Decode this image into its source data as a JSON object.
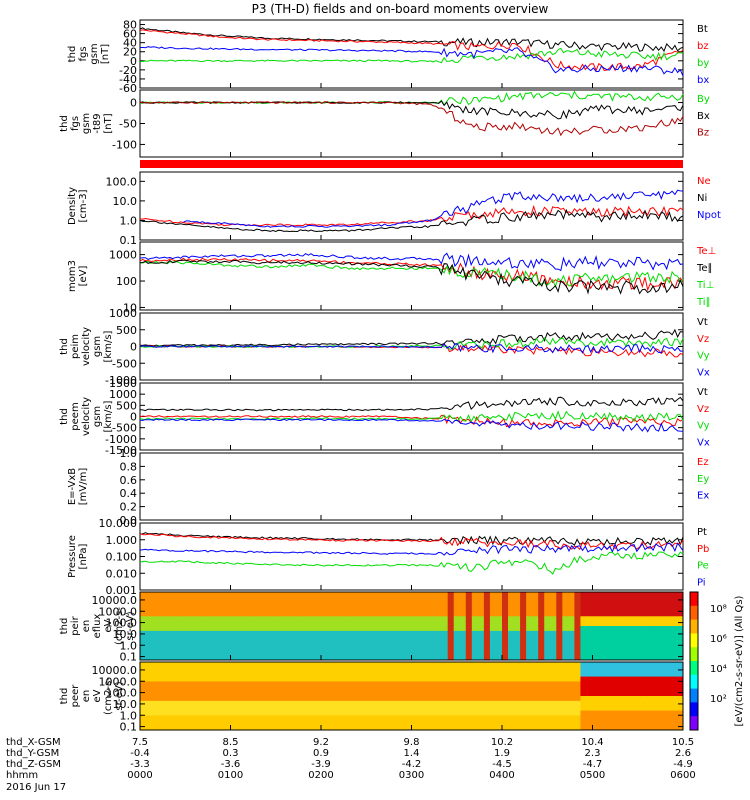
{
  "title": "P3 (TH-D) fields and on-board moments overview",
  "colors": {
    "black": "#000000",
    "red": "#ff0000",
    "green": "#00dd00",
    "blue": "#0000ff",
    "darkred": "#b00000"
  },
  "chart_data": [
    {
      "type": "line",
      "ylabel": [
        "thd",
        "fgs",
        "gsm",
        "[nT]"
      ],
      "ylim": [
        -60,
        90
      ],
      "yticks": [
        "80",
        "60",
        "40",
        "20",
        "0",
        "-20",
        "-40",
        "-60"
      ],
      "ytick_values": [
        80,
        60,
        40,
        20,
        0,
        -20,
        -40,
        -60
      ],
      "legend": [
        {
          "name": "Bt",
          "color": "#000000"
        },
        {
          "name": "bz",
          "color": "#ff0000"
        },
        {
          "name": "by",
          "color": "#00dd00"
        },
        {
          "name": "bx",
          "color": "#0000ff"
        }
      ],
      "series": [
        {
          "name": "Bt",
          "color": "#000000",
          "values": [
            72,
            62,
            55,
            50,
            48,
            46,
            44,
            42,
            40,
            42,
            35,
            32,
            30,
            28
          ]
        },
        {
          "name": "bz",
          "color": "#ff0000",
          "values": [
            68,
            60,
            52,
            47,
            45,
            43,
            41,
            38,
            30,
            38,
            -10,
            -15,
            -12,
            22
          ]
        },
        {
          "name": "by",
          "color": "#00dd00",
          "values": [
            0,
            0,
            0,
            0,
            0,
            0,
            0,
            -2,
            8,
            10,
            20,
            15,
            10,
            12
          ]
        },
        {
          "name": "bx",
          "color": "#0000ff",
          "values": [
            30,
            28,
            26,
            25,
            24,
            23,
            22,
            20,
            15,
            22,
            -20,
            -18,
            -15,
            -25
          ]
        }
      ]
    },
    {
      "type": "line",
      "ylabel": [
        "thd",
        "fgs",
        "gsm",
        "-t89",
        "[nT]"
      ],
      "ylim": [
        -130,
        30
      ],
      "yticks": [
        "0",
        "-50",
        "-100"
      ],
      "ytick_values": [
        0,
        -50,
        -100
      ],
      "legend": [
        {
          "name": "By",
          "color": "#00dd00"
        },
        {
          "name": "Bx",
          "color": "#000000"
        },
        {
          "name": "Bz",
          "color": "#b00000"
        }
      ],
      "series": [
        {
          "name": "By",
          "color": "#00dd00",
          "values": [
            0,
            0,
            0,
            0,
            0,
            0,
            0,
            0,
            5,
            15,
            18,
            15,
            12,
            15
          ]
        },
        {
          "name": "Bx",
          "color": "#000000",
          "values": [
            0,
            0,
            0,
            0,
            0,
            0,
            0,
            0,
            -20,
            -25,
            -30,
            -15,
            -20,
            -10
          ]
        },
        {
          "name": "Bz",
          "color": "#b00000",
          "values": [
            0,
            0,
            0,
            0,
            0,
            0,
            0,
            -5,
            -60,
            -55,
            -70,
            -65,
            -60,
            -40
          ]
        }
      ]
    },
    {
      "type": "line",
      "log": true,
      "ylabel": [
        "Density",
        "[cm-3]"
      ],
      "ylim": [
        0.1,
        300
      ],
      "yticks": [
        "100.0",
        "10.0",
        "1.0",
        "0.1"
      ],
      "ytick_values": [
        100,
        10,
        1,
        0.1
      ],
      "legend": [
        {
          "name": "Ne",
          "color": "#ff0000"
        },
        {
          "name": "Ni",
          "color": "#000000"
        },
        {
          "name": "Npot",
          "color": "#0000ff"
        }
      ],
      "series": [
        {
          "name": "Ne",
          "color": "#ff0000",
          "values": [
            1.2,
            0.8,
            0.6,
            0.6,
            0.6,
            0.6,
            0.8,
            1,
            2,
            3,
            3,
            2.5,
            3,
            3
          ]
        },
        {
          "name": "Ni",
          "color": "#000000",
          "values": [
            1,
            0.6,
            0.4,
            0.3,
            0.3,
            0.3,
            0.4,
            0.5,
            1,
            1.5,
            2,
            1.5,
            1.8,
            1.5
          ]
        },
        {
          "name": "Npot",
          "color": "#0000ff",
          "values": [
            null,
            0.9,
            0.7,
            0.5,
            0.5,
            0.5,
            0.6,
            1,
            5,
            20,
            15,
            15,
            20,
            25
          ]
        }
      ]
    },
    {
      "type": "line",
      "log": true,
      "ylabel": [
        "mom3",
        "[eV]"
      ],
      "ylim": [
        8,
        3000
      ],
      "yticks": [
        "1000",
        "100",
        "10"
      ],
      "ytick_values": [
        1000,
        100,
        10
      ],
      "legend": [
        {
          "name": "Te⊥",
          "color": "#ff0000"
        },
        {
          "name": "Te∥",
          "color": "#000000"
        },
        {
          "name": "Ti⊥",
          "color": "#00dd00"
        },
        {
          "name": "Ti∥",
          "color": "#00dd00"
        }
      ],
      "series": [
        {
          "name": "Ti⊥",
          "color": "#0000ff",
          "values": [
            700,
            800,
            900,
            900,
            1000,
            800,
            700,
            700,
            600,
            500,
            400,
            500,
            450,
            450
          ]
        },
        {
          "name": "Te⊥",
          "color": "#ff0000",
          "values": [
            600,
            650,
            650,
            600,
            600,
            500,
            450,
            400,
            200,
            150,
            100,
            80,
            80,
            90
          ]
        },
        {
          "name": "Ti∥",
          "color": "#00dd00",
          "values": [
            500,
            500,
            400,
            350,
            400,
            300,
            300,
            300,
            200,
            150,
            100,
            120,
            150,
            150
          ]
        },
        {
          "name": "Te∥",
          "color": "#000000",
          "values": [
            500,
            550,
            550,
            500,
            500,
            450,
            400,
            350,
            150,
            100,
            60,
            60,
            60,
            70
          ]
        }
      ]
    },
    {
      "type": "line",
      "ylabel": [
        "thd",
        "peim",
        "velocity",
        "gsm",
        "[km/s]"
      ],
      "ylim": [
        -1000,
        1000
      ],
      "yticks": [
        "1000",
        "500",
        "0",
        "-500",
        "-1000"
      ],
      "ytick_values": [
        1000,
        500,
        0,
        -500,
        -1000
      ],
      "legend": [
        {
          "name": "Vt",
          "color": "#000000"
        },
        {
          "name": "Vz",
          "color": "#ff0000"
        },
        {
          "name": "Vy",
          "color": "#00dd00"
        },
        {
          "name": "Vx",
          "color": "#0000ff"
        }
      ],
      "series": [
        {
          "name": "Vt",
          "color": "#000000",
          "values": [
            30,
            40,
            40,
            50,
            60,
            70,
            80,
            100,
            150,
            250,
            300,
            280,
            300,
            400
          ]
        },
        {
          "name": "Vz",
          "color": "#ff0000",
          "values": [
            0,
            0,
            0,
            0,
            -10,
            -10,
            -20,
            -30,
            -50,
            -80,
            -150,
            -200,
            -180,
            -200
          ]
        },
        {
          "name": "Vy",
          "color": "#00dd00",
          "values": [
            0,
            0,
            0,
            0,
            0,
            0,
            10,
            20,
            50,
            100,
            150,
            120,
            100,
            150
          ]
        },
        {
          "name": "Vx",
          "color": "#0000ff",
          "values": [
            0,
            0,
            0,
            0,
            0,
            0,
            0,
            -20,
            -40,
            -50,
            -80,
            -60,
            -50,
            -100
          ]
        }
      ]
    },
    {
      "type": "line",
      "ylabel": [
        "thd",
        "peem",
        "velocity",
        "gsm",
        "[km/s]"
      ],
      "ylim": [
        -1500,
        1500
      ],
      "yticks": [
        "1500",
        "1000",
        "500",
        "0",
        "-500",
        "-1000",
        "-1500"
      ],
      "ytick_values": [
        1500,
        1000,
        500,
        0,
        -500,
        -1000,
        -1500
      ],
      "legend": [
        {
          "name": "Vt",
          "color": "#000000"
        },
        {
          "name": "Vz",
          "color": "#ff0000"
        },
        {
          "name": "Vy",
          "color": "#00dd00"
        },
        {
          "name": "Vx",
          "color": "#0000ff"
        }
      ],
      "series": [
        {
          "name": "Vt",
          "color": "#000000",
          "values": [
            300,
            300,
            300,
            280,
            300,
            300,
            300,
            320,
            500,
            600,
            700,
            600,
            650,
            700
          ]
        },
        {
          "name": "Vz",
          "color": "#ff0000",
          "values": [
            0,
            0,
            0,
            0,
            0,
            0,
            0,
            -100,
            -200,
            -300,
            -300,
            -250,
            -200,
            -250
          ]
        },
        {
          "name": "Vy",
          "color": "#00dd00",
          "values": [
            -100,
            -100,
            -100,
            -100,
            -100,
            -100,
            -100,
            -100,
            -50,
            0,
            50,
            0,
            -50,
            0
          ]
        },
        {
          "name": "Vx",
          "color": "#0000ff",
          "values": [
            -150,
            -150,
            -150,
            -150,
            -150,
            -150,
            -150,
            -200,
            -300,
            -400,
            -400,
            -450,
            -500,
            -500
          ]
        }
      ]
    },
    {
      "type": "line",
      "ylabel": [
        "E=-VxB",
        "[mV/m]"
      ],
      "ylim": [
        0,
        1
      ],
      "yticks": [
        "1.0",
        "0.8",
        "0.6",
        "0.4",
        "0.2",
        "0.0"
      ],
      "ytick_values": [
        1.0,
        0.8,
        0.6,
        0.4,
        0.2,
        0.0
      ],
      "legend": [
        {
          "name": "Ez",
          "color": "#ff0000"
        },
        {
          "name": "Ey",
          "color": "#00dd00"
        },
        {
          "name": "Ex",
          "color": "#0000ff"
        }
      ],
      "series": []
    },
    {
      "type": "line",
      "log": true,
      "ylabel": [
        "Pressure",
        "[nPa]"
      ],
      "ylim": [
        0.001,
        10
      ],
      "yticks": [
        "10.000",
        "1.000",
        "0.100",
        "0.010",
        "0.001"
      ],
      "ytick_values": [
        10,
        1,
        0.1,
        0.01,
        0.001
      ],
      "legend": [
        {
          "name": "Pt",
          "color": "#000000"
        },
        {
          "name": "Pb",
          "color": "#ff0000"
        },
        {
          "name": "Pe",
          "color": "#00dd00"
        },
        {
          "name": "Pi",
          "color": "#0000ff"
        }
      ],
      "series": [
        {
          "name": "Pt",
          "color": "#000000",
          "values": [
            2.5,
            1.8,
            1.5,
            1.3,
            1.2,
            1.1,
            1.0,
            1.0,
            0.9,
            0.8,
            0.9,
            0.7,
            0.8,
            0.9
          ]
        },
        {
          "name": "Pb",
          "color": "#ff0000",
          "values": [
            2.2,
            1.6,
            1.3,
            1.1,
            1.0,
            0.9,
            0.9,
            0.8,
            0.7,
            0.6,
            0.5,
            0.4,
            0.5,
            0.6
          ]
        },
        {
          "name": "Pi",
          "color": "#0000ff",
          "values": [
            0.25,
            0.22,
            0.2,
            0.18,
            0.17,
            0.16,
            0.15,
            0.15,
            0.2,
            0.3,
            0.25,
            0.3,
            0.35,
            0.35
          ]
        },
        {
          "name": "Pe",
          "color": "#00dd00",
          "values": [
            0.05,
            0.05,
            0.04,
            0.035,
            0.03,
            0.03,
            0.03,
            0.03,
            0.02,
            0.05,
            0.01,
            0.12,
            0.12,
            0.15
          ]
        }
      ]
    },
    {
      "type": "heatmap",
      "ylabel": [
        "thd",
        "peir",
        "en",
        "eflux",
        "eV",
        "(cm2-s-",
        "sr-eV)"
      ],
      "log": true,
      "ylim": [
        0.05,
        50000
      ],
      "yticks": [
        "10000.0",
        "1000.0",
        "100.0",
        "10.0",
        "1.0",
        "0.1"
      ],
      "ytick_values": [
        10000,
        1000,
        100,
        10,
        1,
        0.1
      ]
    },
    {
      "type": "heatmap",
      "ylabel": [
        "thd",
        "peer",
        "en",
        "eV",
        "(cm2-s-",
        "sr-eV)"
      ],
      "log": true,
      "ylim": [
        0.05,
        50000
      ],
      "yticks": [
        "10000.0",
        "1000.0",
        "100.0",
        "10.0",
        "1.0",
        "0.1"
      ],
      "ytick_values": [
        10000,
        1000,
        100,
        10,
        1,
        0.1
      ]
    }
  ],
  "colorbar": {
    "labels": [
      "10⁸",
      "10⁶",
      "10⁴",
      "10²"
    ],
    "title": "[eV/(cm2-s-sr-eV)] (All Qs)"
  },
  "xaxis": {
    "rows": [
      {
        "label": "thd_X-GSM",
        "values": [
          "7.5",
          "8.5",
          "9.2",
          "9.8",
          "10.2",
          "10.4",
          "10.5"
        ]
      },
      {
        "label": "thd_Y-GSM",
        "values": [
          "-0.4",
          "0.3",
          "0.9",
          "1.4",
          "1.9",
          "2.3",
          "2.6"
        ]
      },
      {
        "label": "thd_Z-GSM",
        "values": [
          "-3.3",
          "-3.6",
          "-3.9",
          "-4.2",
          "-4.5",
          "-4.7",
          "-4.9"
        ]
      },
      {
        "label": "hhmm",
        "values": [
          "0000",
          "0100",
          "0200",
          "0300",
          "0400",
          "0500",
          "0600"
        ]
      }
    ],
    "date": "2016 Jun 17"
  }
}
